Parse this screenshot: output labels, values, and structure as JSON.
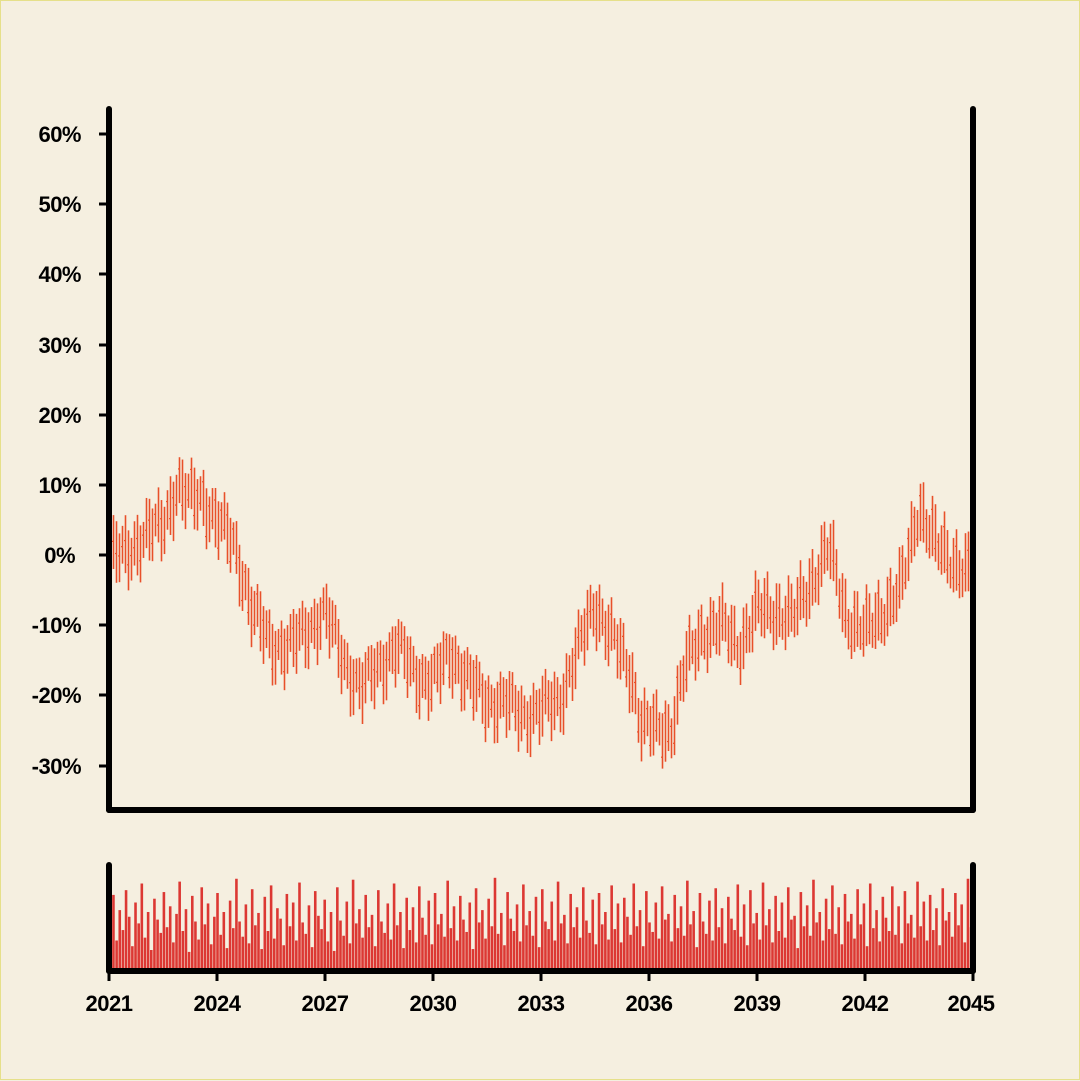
{
  "chart_data": {
    "type": "ohlc",
    "title": "",
    "xlabel": "",
    "ylabel": "",
    "x_range": [
      2021,
      2045
    ],
    "ylim": [
      -36,
      64
    ],
    "y_ticks": [
      60,
      50,
      40,
      30,
      20,
      10,
      0,
      -10,
      -20,
      -30
    ],
    "y_tick_labels": [
      "60%",
      "50%",
      "40%",
      "30%",
      "20%",
      "10%",
      "0%",
      "-10%",
      "-20%",
      "-30%"
    ],
    "x_ticks": [
      2021,
      2024,
      2027,
      2030,
      2033,
      2036,
      2039,
      2042,
      2045
    ],
    "x_tick_labels": [
      "2021",
      "2024",
      "2027",
      "2030",
      "2033",
      "2036",
      "2039",
      "2042",
      "2045"
    ],
    "price_color": "#e8502a",
    "volume_color": "#dc3833",
    "background": "#f5efe0",
    "price_anchors": [
      [
        2021.0,
        0
      ],
      [
        2021.5,
        0
      ],
      [
        2022.0,
        3
      ],
      [
        2022.5,
        4
      ],
      [
        2022.9,
        10
      ],
      [
        2023.2,
        8
      ],
      [
        2023.6,
        8
      ],
      [
        2024.0,
        5
      ],
      [
        2024.5,
        1
      ],
      [
        2025.0,
        -8
      ],
      [
        2025.5,
        -13
      ],
      [
        2026.0,
        -13
      ],
      [
        2026.5,
        -11
      ],
      [
        2027.0,
        -8
      ],
      [
        2027.5,
        -15
      ],
      [
        2028.0,
        -19
      ],
      [
        2028.5,
        -16
      ],
      [
        2029.0,
        -13
      ],
      [
        2029.5,
        -17
      ],
      [
        2030.0,
        -18
      ],
      [
        2030.5,
        -14
      ],
      [
        2031.0,
        -18
      ],
      [
        2031.5,
        -21
      ],
      [
        2032.0,
        -21
      ],
      [
        2032.5,
        -23
      ],
      [
        2033.0,
        -22
      ],
      [
        2033.5,
        -21
      ],
      [
        2034.0,
        -14
      ],
      [
        2034.5,
        -7
      ],
      [
        2035.0,
        -12
      ],
      [
        2035.5,
        -17
      ],
      [
        2035.8,
        -24
      ],
      [
        2036.2,
        -25
      ],
      [
        2036.6,
        -25
      ],
      [
        2037.0,
        -16
      ],
      [
        2037.5,
        -11
      ],
      [
        2038.0,
        -10
      ],
      [
        2038.5,
        -13
      ],
      [
        2039.0,
        -8
      ],
      [
        2039.5,
        -8
      ],
      [
        2040.0,
        -9
      ],
      [
        2040.5,
        -4
      ],
      [
        2041.0,
        1
      ],
      [
        2041.5,
        -9
      ],
      [
        2042.0,
        -11
      ],
      [
        2042.5,
        -8
      ],
      [
        2043.0,
        -5
      ],
      [
        2043.5,
        7
      ],
      [
        2044.0,
        1
      ],
      [
        2044.5,
        -1
      ],
      [
        2045.0,
        -3
      ]
    ],
    "volume_relative": [
      0.35,
      0.78,
      0.3,
      0.62,
      0.41,
      0.83,
      0.55,
      0.24,
      0.7,
      0.48,
      0.9,
      0.33,
      0.6,
      0.2,
      0.74,
      0.52,
      0.38,
      0.81,
      0.44,
      0.66,
      0.28,
      0.58,
      0.92,
      0.4,
      0.63,
      0.18,
      0.77,
      0.5,
      0.31,
      0.86,
      0.47,
      0.69,
      0.26,
      0.55,
      0.8,
      0.36,
      0.6,
      0.22,
      0.72,
      0.43,
      0.95,
      0.5,
      0.34,
      0.68,
      0.27,
      0.84,
      0.46,
      0.59,
      0.21,
      0.76,
      0.4,
      0.88,
      0.32,
      0.64,
      0.53,
      0.25,
      0.79,
      0.45,
      0.7,
      0.3,
      0.91,
      0.49,
      0.37,
      0.67,
      0.23,
      0.82,
      0.56,
      0.42,
      0.73,
      0.29,
      0.6,
      0.19,
      0.86,
      0.51,
      0.35,
      0.71,
      0.27,
      0.94,
      0.48,
      0.63,
      0.33,
      0.78,
      0.44,
      0.57,
      0.24,
      0.83,
      0.5,
      0.38,
      0.69,
      0.31,
      0.9,
      0.46,
      0.6,
      0.22,
      0.75,
      0.41,
      0.65,
      0.28,
      0.87,
      0.54,
      0.36,
      0.72,
      0.26,
      0.8,
      0.47,
      0.58,
      0.34,
      0.93,
      0.43,
      0.66,
      0.3,
      0.77,
      0.52,
      0.39,
      0.7,
      0.21,
      0.85,
      0.49,
      0.62,
      0.32,
      0.74,
      0.45,
      0.96,
      0.37,
      0.59,
      0.25,
      0.81,
      0.53,
      0.4,
      0.68,
      0.29,
      0.89,
      0.46,
      0.61,
      0.35,
      0.76,
      0.23,
      0.84,
      0.5,
      0.42,
      0.71,
      0.3,
      0.92,
      0.48,
      0.57,
      0.27,
      0.79,
      0.44,
      0.65,
      0.33,
      0.86,
      0.51,
      0.38,
      0.73,
      0.26,
      0.8,
      0.47,
      0.6,
      0.31,
      0.88,
      0.42,
      0.69,
      0.28,
      0.75,
      0.55,
      0.36,
      0.9,
      0.45,
      0.62,
      0.24,
      0.82,
      0.49,
      0.39,
      0.7,
      0.32,
      0.87,
      0.52,
      0.58,
      0.29,
      0.78,
      0.43,
      0.66,
      0.35,
      0.93,
      0.47,
      0.61,
      0.23,
      0.8,
      0.5,
      0.37,
      0.72,
      0.3,
      0.85,
      0.44,
      0.64,
      0.27,
      0.76,
      0.53,
      0.41,
      0.89,
      0.34,
      0.68,
      0.25,
      0.83,
      0.48,
      0.59,
      0.31,
      0.91,
      0.46,
      0.63,
      0.28,
      0.77,
      0.4,
      0.7,
      0.33,
      0.86,
      0.52,
      0.56,
      0.22,
      0.81,
      0.45,
      0.67,
      0.35,
      0.94,
      0.49,
      0.6,
      0.3,
      0.74,
      0.42,
      0.88,
      0.37,
      0.65,
      0.26,
      0.79,
      0.5,
      0.58,
      0.32,
      0.84,
      0.47,
      0.69,
      0.24,
      0.9,
      0.43,
      0.62,
      0.29,
      0.76,
      0.54,
      0.4,
      0.87,
      0.36,
      0.66,
      0.27,
      0.82,
      0.48,
      0.57,
      0.33,
      0.92,
      0.45,
      0.71,
      0.3,
      0.78,
      0.41,
      0.64,
      0.25,
      0.85,
      0.51,
      0.6,
      0.34,
      0.8,
      0.46,
      0.68,
      0.28,
      0.95,
      0.44
    ]
  }
}
